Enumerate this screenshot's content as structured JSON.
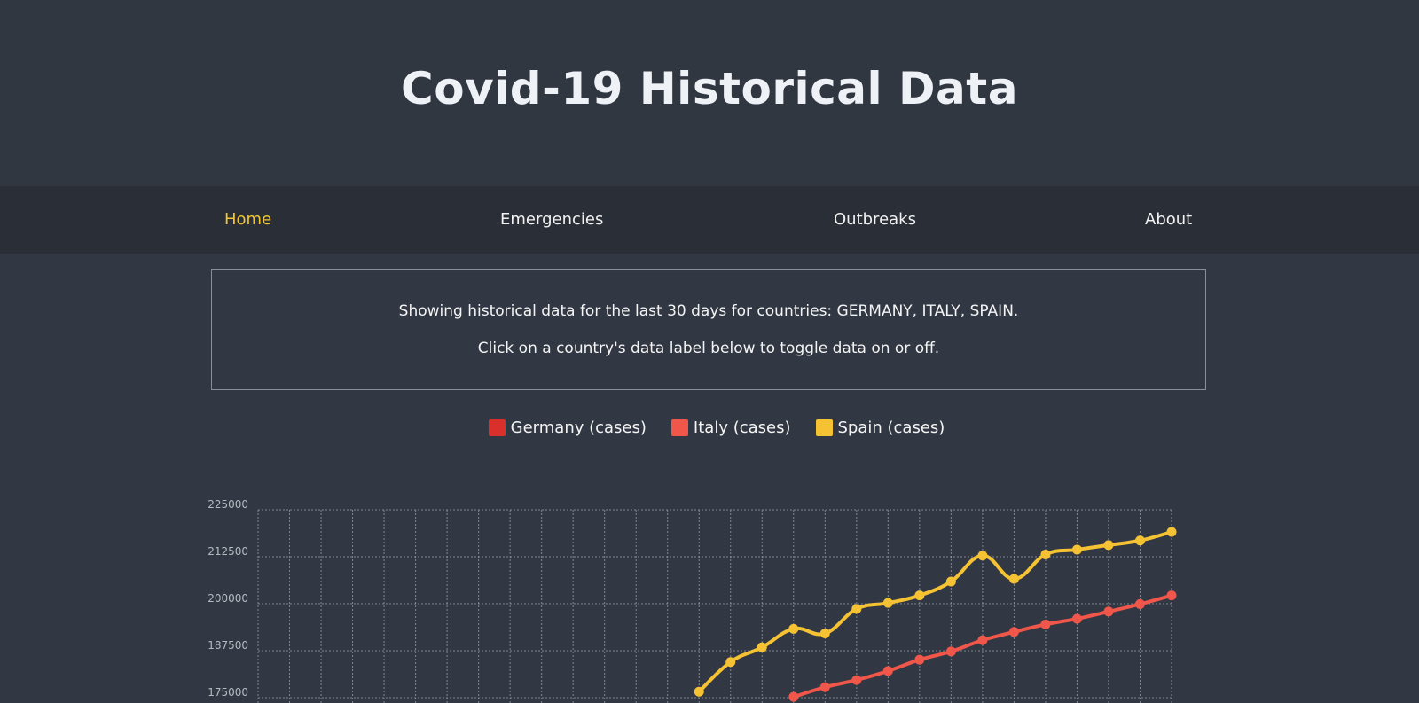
{
  "header": {
    "title": "Covid-19 Historical Data"
  },
  "nav": {
    "items": [
      {
        "label": "Home",
        "active": true
      },
      {
        "label": "Emergencies",
        "active": false
      },
      {
        "label": "Outbreaks",
        "active": false
      },
      {
        "label": "About",
        "active": false
      }
    ]
  },
  "info": {
    "line1": "Showing historical data for the last 30 days for countries: GERMANY, ITALY, SPAIN.",
    "line2": "Click on a country's data label below to toggle data on or off."
  },
  "colors": {
    "accent": "#f3c532",
    "germany": "#d9302b",
    "italy": "#f0564a",
    "spain": "#f5c234",
    "grid": "#9aa0a8"
  },
  "chart_data": {
    "type": "line",
    "legend_position": "top",
    "grid": true,
    "ylim": [
      175000,
      225000
    ],
    "yticks": [
      "225000",
      "212500",
      "200000",
      "187500",
      "175000"
    ],
    "x_count": 30,
    "series": [
      {
        "name": "Germany (cases)",
        "color": "#d9302b",
        "values": []
      },
      {
        "name": "Italy (cases)",
        "color": "#f0564a",
        "values": [
          null,
          null,
          null,
          null,
          null,
          null,
          null,
          null,
          null,
          null,
          null,
          null,
          null,
          null,
          null,
          null,
          null,
          175200,
          177800,
          179700,
          182100,
          185100,
          187300,
          190300,
          192500,
          194500,
          196000,
          197900,
          199900,
          202200
        ]
      },
      {
        "name": "Spain (cases)",
        "color": "#f5c234",
        "values": [
          null,
          null,
          null,
          null,
          null,
          null,
          null,
          null,
          null,
          null,
          null,
          null,
          null,
          null,
          176600,
          184500,
          188400,
          193300,
          192100,
          198600,
          200200,
          202200,
          205900,
          212800,
          206600,
          213100,
          214400,
          215600,
          216800,
          219100
        ]
      }
    ]
  }
}
